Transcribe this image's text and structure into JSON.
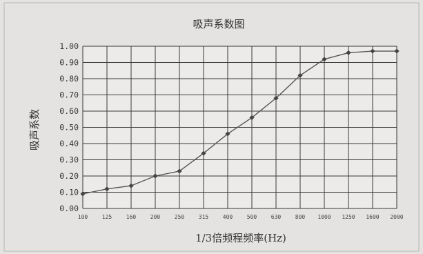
{
  "chart_data": {
    "type": "line",
    "title": "吸声系数图",
    "xlabel": "1/3倍频程频率(Hz)",
    "ylabel": "吸声系数",
    "categories": [
      "100",
      "125",
      "160",
      "200",
      "250",
      "315",
      "400",
      "500",
      "630",
      "800",
      "1000",
      "1250",
      "1600",
      "2000"
    ],
    "series": [
      {
        "values": [
          0.09,
          0.12,
          0.14,
          0.2,
          0.23,
          0.34,
          0.46,
          0.56,
          0.68,
          0.82,
          0.92,
          0.96,
          0.97,
          0.97
        ]
      }
    ],
    "y_ticks": [
      "0.00",
      "0.10",
      "0.20",
      "0.30",
      "0.40",
      "0.50",
      "0.60",
      "0.70",
      "0.80",
      "0.90",
      "1.00"
    ],
    "ylim": [
      0,
      1.0
    ],
    "grid": true,
    "legend": "none",
    "colors": {
      "line": "#555555",
      "marker": "#444444",
      "grid": "#3a3a3a",
      "background": "#e4e3e1",
      "plot_background": "#ecebe9"
    }
  }
}
